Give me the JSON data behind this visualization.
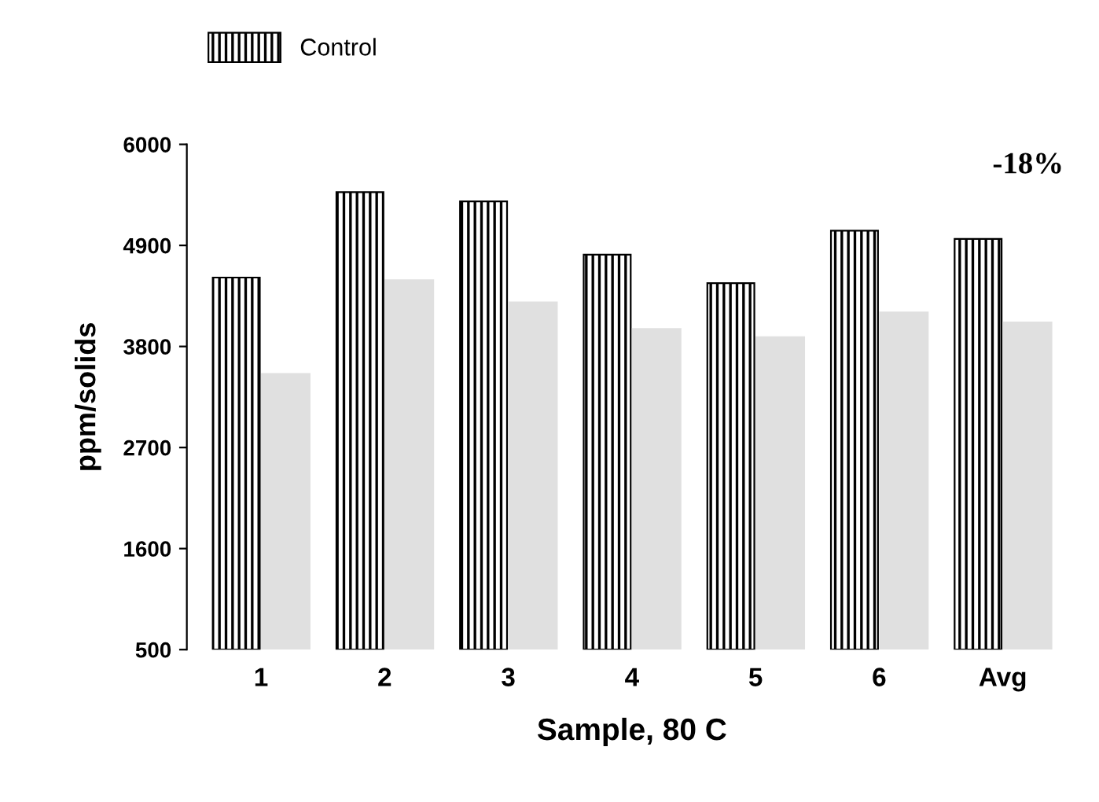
{
  "chart_data": {
    "type": "bar",
    "xlabel": "Sample, 80 C",
    "ylabel": "ppm/solids",
    "categories": [
      "1",
      "2",
      "3",
      "4",
      "5",
      "6",
      "Avg"
    ],
    "series": [
      {
        "name": "Control",
        "color": "#000000",
        "values": [
          4550,
          5480,
          5380,
          4800,
          4490,
          5060,
          4970
        ]
      },
      {
        "color": "#e0e0e0",
        "values": [
          3510,
          4530,
          4290,
          4000,
          3910,
          4180,
          4070
        ]
      }
    ],
    "ylim": [
      500,
      6000
    ],
    "yticks": [
      500,
      1600,
      2700,
      3800,
      4900,
      6000
    ],
    "grid": false,
    "legend": "top",
    "annotations": [
      "-18%"
    ]
  }
}
